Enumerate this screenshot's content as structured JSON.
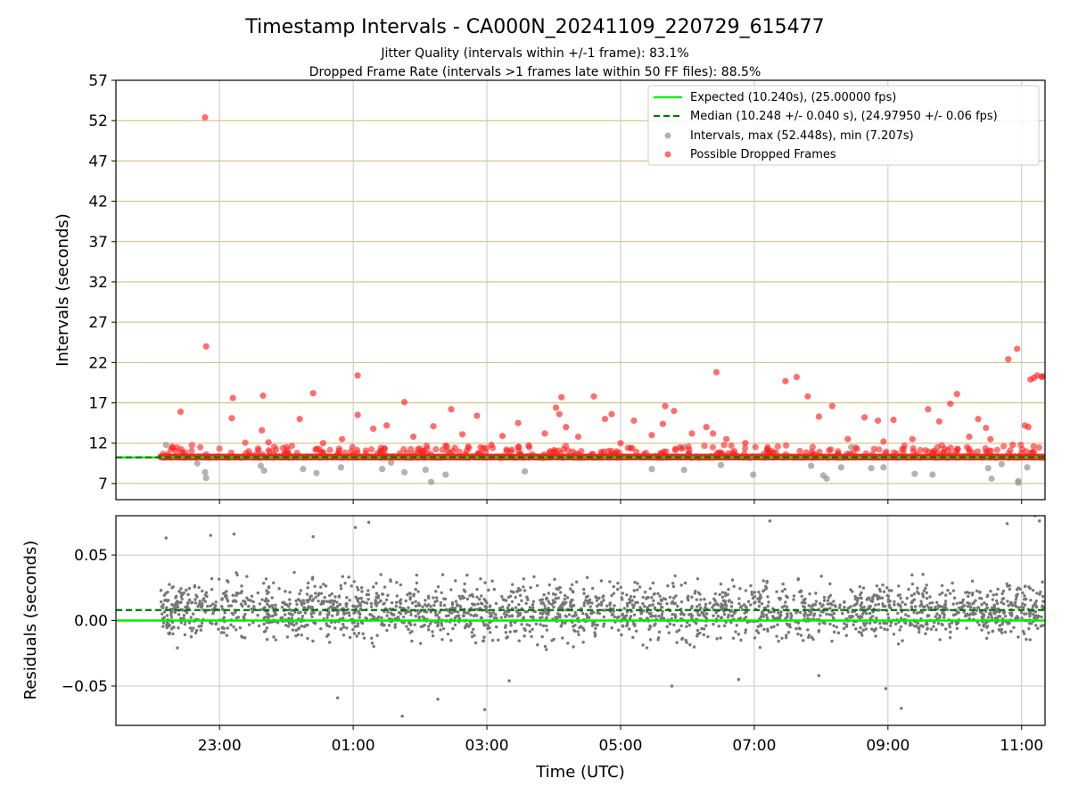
{
  "chart_data": [
    {
      "type": "scatter",
      "title": "Timestamp Intervals - CA000N_20241109_220729_615477",
      "subtitle_lines": [
        "Jitter Quality (intervals within +/-1 frame): 83.1%",
        "Dropped Frame Rate (intervals >1 frames late within 50 FF files): 88.5%"
      ],
      "xlabel": "",
      "ylabel": "Intervals (seconds)",
      "xlim_hours": [
        21.45,
        11.35
      ],
      "ylim": [
        5,
        57
      ],
      "yticks": [
        7,
        12,
        17,
        22,
        27,
        32,
        37,
        42,
        47,
        52,
        57
      ],
      "ytick_labels": [
        "7",
        "12",
        "17",
        "22",
        "27",
        "32",
        "37",
        "42",
        "47",
        "52",
        "57"
      ],
      "grid": true,
      "grid_color": "#d2b96e",
      "legend_position": "top-right",
      "legend": [
        {
          "label": "Expected (10.240s), (25.00000 fps)",
          "style": "solid-line",
          "color": "#00ee00"
        },
        {
          "label": "Median (10.248 +/- 0.040 s), (24.97950 +/- 0.06 fps)",
          "style": "dashed-line",
          "color": "#007700"
        },
        {
          "label": "Intervals, max (52.448s), min (7.207s)",
          "style": "marker",
          "color": "#999999"
        },
        {
          "label": "Possible Dropped Frames",
          "style": "marker",
          "color": "#ff2020"
        }
      ],
      "expected_interval": 10.24,
      "median_interval": 10.248,
      "max_interval": 52.448,
      "min_interval": 7.207,
      "data_start_time": "22:07",
      "data_end_time": "11:20",
      "baseline_dropped_value": 10.28,
      "series": [
        {
          "name": "Possible Dropped Frames",
          "color": "#ff2020",
          "points": [
            [
              "22:47",
              52.4
            ],
            [
              "22:48",
              24.0
            ],
            [
              "22:25",
              15.9
            ],
            [
              "23:12",
              17.6
            ],
            [
              "23:11",
              15.1
            ],
            [
              "23:39",
              17.9
            ],
            [
              "23:38",
              13.6
            ],
            [
              "23:44",
              12.1
            ],
            [
              "00:00",
              11.5
            ],
            [
              "00:12",
              15.0
            ],
            [
              "00:24",
              18.2
            ],
            [
              "00:33",
              12.0
            ],
            [
              "00:50",
              12.5
            ],
            [
              "01:04",
              20.4
            ],
            [
              "01:04",
              15.5
            ],
            [
              "01:18",
              13.8
            ],
            [
              "01:25",
              11.4
            ],
            [
              "01:30",
              14.2
            ],
            [
              "01:46",
              17.1
            ],
            [
              "01:54",
              12.8
            ],
            [
              "02:12",
              14.1
            ],
            [
              "02:23",
              11.7
            ],
            [
              "02:28",
              16.2
            ],
            [
              "02:38",
              13.1
            ],
            [
              "02:51",
              15.4
            ],
            [
              "03:04",
              11.8
            ],
            [
              "03:14",
              12.9
            ],
            [
              "03:28",
              14.5
            ],
            [
              "03:38",
              11.5
            ],
            [
              "03:52",
              13.2
            ],
            [
              "04:02",
              16.4
            ],
            [
              "04:05",
              15.6
            ],
            [
              "04:07",
              17.7
            ],
            [
              "04:11",
              14.0
            ],
            [
              "04:22",
              12.8
            ],
            [
              "04:36",
              17.8
            ],
            [
              "04:46",
              15.0
            ],
            [
              "04:52",
              15.6
            ],
            [
              "05:00",
              12.0
            ],
            [
              "05:12",
              14.8
            ],
            [
              "05:28",
              13.0
            ],
            [
              "05:38",
              14.4
            ],
            [
              "05:40",
              16.6
            ],
            [
              "05:48",
              16.0
            ],
            [
              "06:04",
              13.2
            ],
            [
              "06:17",
              14.0
            ],
            [
              "06:23",
              13.2
            ],
            [
              "06:26",
              20.8
            ],
            [
              "06:35",
              12.5
            ],
            [
              "06:52",
              12.0
            ],
            [
              "07:12",
              11.5
            ],
            [
              "07:28",
              19.7
            ],
            [
              "07:38",
              20.2
            ],
            [
              "07:48",
              17.8
            ],
            [
              "07:58",
              15.3
            ],
            [
              "08:10",
              16.6
            ],
            [
              "08:24",
              12.5
            ],
            [
              "08:39",
              15.2
            ],
            [
              "08:51",
              14.8
            ],
            [
              "08:56",
              12.2
            ],
            [
              "09:05",
              14.9
            ],
            [
              "09:22",
              12.5
            ],
            [
              "09:36",
              16.2
            ],
            [
              "09:46",
              14.7
            ],
            [
              "09:56",
              16.9
            ],
            [
              "10:02",
              18.1
            ],
            [
              "10:13",
              12.8
            ],
            [
              "10:21",
              15.0
            ],
            [
              "10:28",
              13.9
            ],
            [
              "10:32",
              12.5
            ],
            [
              "10:48",
              22.4
            ],
            [
              "10:52",
              11.8
            ],
            [
              "10:56",
              23.7
            ],
            [
              "11:03",
              14.2
            ],
            [
              "11:06",
              14.0
            ],
            [
              "11:08",
              19.9
            ],
            [
              "11:11",
              20.1
            ],
            [
              "11:14",
              20.4
            ],
            [
              "11:18",
              20.2
            ],
            [
              "11:19",
              20.3
            ]
          ]
        },
        {
          "name": "Intervals",
          "color": "#999999",
          "points": [
            [
              "22:12",
              11.8
            ],
            [
              "22:40",
              9.5
            ],
            [
              "22:47",
              8.4
            ],
            [
              "22:48",
              7.7
            ],
            [
              "23:37",
              9.2
            ],
            [
              "23:40",
              8.6
            ],
            [
              "00:15",
              8.8
            ],
            [
              "00:27",
              8.3
            ],
            [
              "00:49",
              9.0
            ],
            [
              "01:26",
              8.8
            ],
            [
              "01:34",
              9.6
            ],
            [
              "01:46",
              8.4
            ],
            [
              "02:05",
              8.7
            ],
            [
              "02:10",
              7.2
            ],
            [
              "02:23",
              8.1
            ],
            [
              "03:34",
              8.5
            ],
            [
              "05:28",
              8.8
            ],
            [
              "05:57",
              11.5
            ],
            [
              "05:57",
              8.7
            ],
            [
              "06:30",
              9.3
            ],
            [
              "06:59",
              8.1
            ],
            [
              "07:51",
              9.2
            ],
            [
              "08:02",
              8.0
            ],
            [
              "08:05",
              7.6
            ],
            [
              "08:18",
              9.0
            ],
            [
              "08:27",
              11.5
            ],
            [
              "08:45",
              8.9
            ],
            [
              "08:56",
              9.0
            ],
            [
              "09:24",
              8.2
            ],
            [
              "09:40",
              8.1
            ],
            [
              "10:30",
              8.9
            ],
            [
              "10:33",
              7.6
            ],
            [
              "10:42",
              9.4
            ],
            [
              "10:57",
              7.3
            ],
            [
              "10:57",
              7.1
            ],
            [
              "11:05",
              9.0
            ]
          ]
        }
      ]
    },
    {
      "type": "scatter",
      "xlabel": "Time (UTC)",
      "ylabel": "Residuals (seconds)",
      "ylim": [
        -0.08,
        0.08
      ],
      "yticks": [
        -0.05,
        0.0,
        0.05
      ],
      "ytick_labels": [
        "−0.05",
        "0.00",
        "0.05"
      ],
      "xtick_times": [
        "23:00",
        "01:00",
        "03:00",
        "05:00",
        "07:00",
        "09:00",
        "11:00"
      ],
      "xtick_labels": [
        "23:00",
        "01:00",
        "03:00",
        "05:00",
        "07:00",
        "09:00",
        "11:00"
      ],
      "grid": true,
      "expected_residual": 0.0,
      "median_residual": 0.008,
      "series": [
        {
          "name": "Residuals",
          "color": "#777777",
          "density": "2300 points spread roughly uniformly over 22:07-11:20, concentrated within about -0.02 to +0.04 s",
          "extreme_points": [
            [
              "22:12",
              0.063
            ],
            [
              "22:52",
              0.065
            ],
            [
              "23:13",
              0.066
            ],
            [
              "00:24",
              0.064
            ],
            [
              "01:02",
              0.071
            ],
            [
              "01:14",
              0.075
            ],
            [
              "00:46",
              -0.059
            ],
            [
              "01:44",
              -0.073
            ],
            [
              "02:16",
              -0.06
            ],
            [
              "02:58",
              -0.068
            ],
            [
              "03:20",
              -0.046
            ],
            [
              "05:46",
              -0.05
            ],
            [
              "06:46",
              -0.045
            ],
            [
              "07:14",
              0.076
            ],
            [
              "07:58",
              -0.042
            ],
            [
              "08:58",
              -0.052
            ],
            [
              "09:12",
              -0.067
            ],
            [
              "10:47",
              0.074
            ],
            [
              "11:12",
              0.08
            ],
            [
              "11:16",
              0.076
            ]
          ]
        }
      ]
    }
  ]
}
